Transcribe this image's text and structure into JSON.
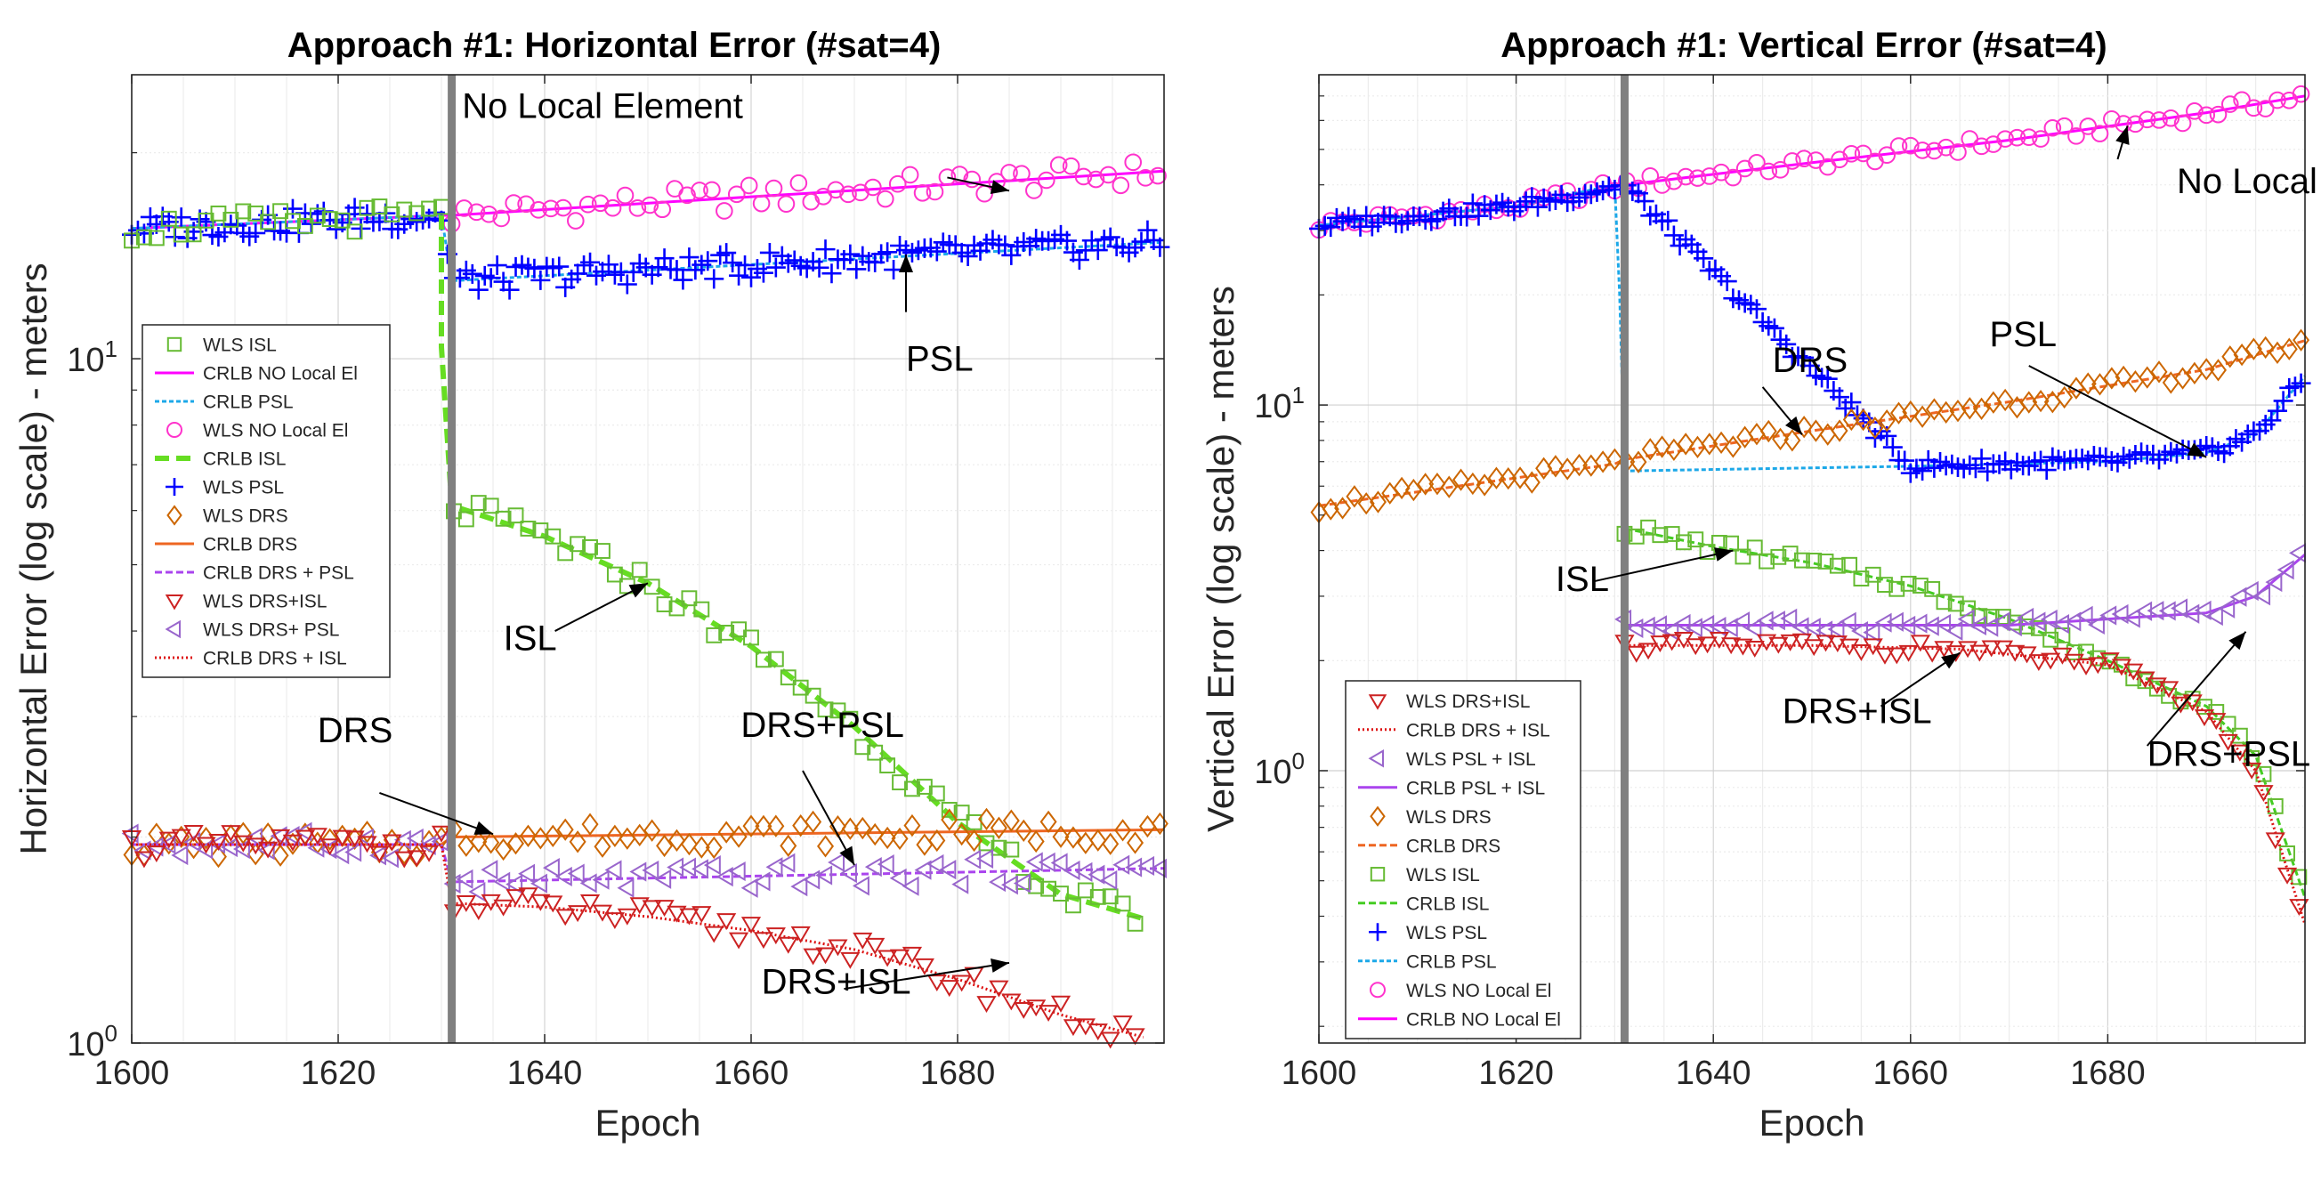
{
  "chart_data": [
    {
      "type": "line",
      "scale_y": "log",
      "title": "Approach #1:  Horizontal Error (#sat=4)",
      "xlabel": "Epoch",
      "ylabel": "Horizontal Error  (log scale) - meters",
      "xlim": [
        1600,
        1700
      ],
      "ylim": [
        1,
        26
      ],
      "xticks": [
        {
          "v": 1600,
          "label": "1600"
        },
        {
          "v": 1620,
          "label": "1620"
        },
        {
          "v": 1640,
          "label": "1640"
        },
        {
          "v": 1660,
          "label": "1660"
        },
        {
          "v": 1680,
          "label": "1680"
        }
      ],
      "yticks": [
        {
          "v": 1,
          "base": "10",
          "exp": "0"
        },
        {
          "v": 10,
          "base": "10",
          "exp": "1"
        }
      ],
      "event_epoch": 1631,
      "legend": {
        "position": "middle-left",
        "entries": [
          {
            "label": "WLS ISL",
            "series": "wls_isl"
          },
          {
            "label": "CRLB NO Local El",
            "series": "crlb_nolocal"
          },
          {
            "label": "CRLB PSL",
            "series": "crlb_psl"
          },
          {
            "label": "WLS NO Local El",
            "series": "wls_nolocal"
          },
          {
            "label": "CRLB ISL",
            "series": "crlb_isl"
          },
          {
            "label": "WLS PSL",
            "series": "wls_psl"
          },
          {
            "label": "WLS DRS",
            "series": "wls_drs"
          },
          {
            "label": "CRLB DRS",
            "series": "crlb_drs"
          },
          {
            "label": "CRLB DRS + PSL",
            "series": "crlb_drs_psl"
          },
          {
            "label": "WLS DRS+ISL",
            "series": "wls_drs_isl"
          },
          {
            "label": "WLS DRS+ PSL",
            "series": "wls_drs_psl"
          },
          {
            "label": "CRLB DRS + ISL",
            "series": "crlb_drs_isl"
          }
        ]
      },
      "series": [
        {
          "key": "crlb_nolocal",
          "name": "CRLB NO Local El",
          "style": "line",
          "color": "#ff00ff",
          "dash": "",
          "x": [
            1600,
            1630,
            1631,
            1700
          ],
          "y": [
            15.5,
            16.2,
            16.2,
            18.8
          ]
        },
        {
          "key": "wls_nolocal",
          "name": "WLS NO Local El",
          "style": "marker",
          "marker": "circle",
          "color": "#ff33cc",
          "x": [
            1631,
            1700
          ],
          "y": [
            16.2,
            18.8
          ]
        },
        {
          "key": "crlb_psl",
          "name": "CRLB PSL",
          "style": "line",
          "color": "#1ca8e8",
          "dash": "5,3",
          "x": [
            1600,
            1630,
            1631,
            1700
          ],
          "y": [
            15.5,
            16.2,
            13.0,
            14.8
          ]
        },
        {
          "key": "wls_psl",
          "name": "WLS PSL",
          "style": "marker",
          "marker": "plus",
          "color": "#0000ff",
          "x": [
            1600,
            1630,
            1631,
            1700
          ],
          "y": [
            15.5,
            16.2,
            13.0,
            14.8
          ]
        },
        {
          "key": "crlb_isl",
          "name": "CRLB ISL",
          "style": "line",
          "color": "#66dd22",
          "dash": "16,8",
          "x": [
            1630,
            1630,
            1631,
            1640,
            1650,
            1660,
            1670,
            1680,
            1690,
            1698
          ],
          "y": [
            16.2,
            10.4,
            6.1,
            5.5,
            4.7,
            3.8,
            2.9,
            2.1,
            1.65,
            1.52
          ]
        },
        {
          "key": "wls_isl",
          "name": "WLS ISL",
          "style": "marker",
          "marker": "square",
          "color": "#66bb33",
          "x": [
            1600,
            1630,
            1631,
            1640,
            1650,
            1660,
            1670,
            1680,
            1690,
            1698
          ],
          "y": [
            15.5,
            16.2,
            6.1,
            5.5,
            4.7,
            3.8,
            2.9,
            2.1,
            1.65,
            1.52
          ]
        },
        {
          "key": "crlb_drs",
          "name": "CRLB DRS",
          "style": "line",
          "color": "#ee6622",
          "dash": "",
          "x": [
            1600,
            1630,
            1631,
            1700
          ],
          "y": [
            1.95,
            1.95,
            2.0,
            2.05
          ]
        },
        {
          "key": "wls_drs",
          "name": "WLS DRS",
          "style": "marker",
          "marker": "diamond",
          "color": "#cc6600",
          "x": [
            1600,
            1630,
            1631,
            1700
          ],
          "y": [
            1.95,
            1.95,
            2.0,
            2.05
          ]
        },
        {
          "key": "crlb_drs_psl",
          "name": "CRLB DRS + PSL",
          "style": "line",
          "color": "#aa44ee",
          "dash": "8,4",
          "x": [
            1600,
            1630,
            1631,
            1700
          ],
          "y": [
            1.95,
            1.95,
            1.72,
            1.8
          ]
        },
        {
          "key": "wls_drs_psl",
          "name": "WLS DRS+ PSL",
          "style": "marker",
          "marker": "tri-left",
          "color": "#9966cc",
          "x": [
            1600,
            1630,
            1631,
            1700
          ],
          "y": [
            1.95,
            1.95,
            1.72,
            1.8
          ]
        },
        {
          "key": "crlb_drs_isl",
          "name": "CRLB DRS + ISL",
          "style": "line",
          "color": "#dd1111",
          "dash": "2,3",
          "x": [
            1600,
            1630,
            1631,
            1640,
            1650,
            1660,
            1670,
            1680,
            1690,
            1698
          ],
          "y": [
            1.95,
            1.95,
            1.6,
            1.58,
            1.53,
            1.46,
            1.37,
            1.24,
            1.1,
            1.02
          ]
        },
        {
          "key": "wls_drs_isl",
          "name": "WLS DRS+ISL",
          "style": "marker",
          "marker": "tri-down",
          "color": "#cc2222",
          "x": [
            1600,
            1630,
            1631,
            1640,
            1650,
            1660,
            1670,
            1680,
            1690,
            1698
          ],
          "y": [
            1.95,
            1.95,
            1.6,
            1.58,
            1.53,
            1.46,
            1.37,
            1.24,
            1.1,
            1.02
          ]
        }
      ],
      "annotations": [
        {
          "text": "No Local Element",
          "tx": 1632,
          "ty": 22.5,
          "ax": 1679,
          "ay": 18.4,
          "tip_x": 1685,
          "tip_y": 17.6
        },
        {
          "text": "PSL",
          "tx": 1675,
          "ty": 9.6,
          "ax": 1675,
          "ay": 11.7,
          "tip_x": 1675,
          "tip_y": 14.2
        },
        {
          "text": "ISL",
          "tx": 1636,
          "ty": 3.75,
          "ax": 1641,
          "ay": 4.0,
          "tip_x": 1650,
          "tip_y": 4.7
        },
        {
          "text": "DRS",
          "tx": 1618,
          "ty": 2.75,
          "ax": 1624,
          "ay": 2.32,
          "tip_x": 1635,
          "tip_y": 2.02
        },
        {
          "text": "DRS+PSL",
          "tx": 1659,
          "ty": 2.8,
          "ax": 1665,
          "ay": 2.5,
          "tip_x": 1670,
          "tip_y": 1.82
        },
        {
          "text": "DRS+ISL",
          "tx": 1661,
          "ty": 1.18,
          "ax": 1669,
          "ay": 1.2,
          "tip_x": 1685,
          "tip_y": 1.31
        }
      ]
    },
    {
      "type": "line",
      "scale_y": "log",
      "title": "Approach #1: Vertical Error (#sat=4)",
      "xlabel": "Epoch",
      "ylabel": "Vertical Error  (log scale) - meters",
      "xlim": [
        1600,
        1700
      ],
      "ylim": [
        0.18,
        80
      ],
      "xticks": [
        {
          "v": 1600,
          "label": "1600"
        },
        {
          "v": 1620,
          "label": "1620"
        },
        {
          "v": 1640,
          "label": "1640"
        },
        {
          "v": 1660,
          "label": "1660"
        },
        {
          "v": 1680,
          "label": "1680"
        }
      ],
      "yticks": [
        {
          "v": 1,
          "base": "10",
          "exp": "0"
        },
        {
          "v": 10,
          "base": "10",
          "exp": "1"
        }
      ],
      "event_epoch": 1631,
      "legend": {
        "position": "bottom-left",
        "entries": [
          {
            "label": "WLS DRS+ISL",
            "series": "wls_drs_isl"
          },
          {
            "label": "CRLB DRS + ISL",
            "series": "crlb_drs_isl"
          },
          {
            "label": "WLS PSL + ISL",
            "series": "wls_psl_isl"
          },
          {
            "label": "CRLB PSL + ISL",
            "series": "crlb_psl_isl"
          },
          {
            "label": "WLS DRS",
            "series": "wls_drs"
          },
          {
            "label": "CRLB DRS",
            "series": "crlb_drs"
          },
          {
            "label": "WLS ISL",
            "series": "wls_isl"
          },
          {
            "label": "CRLB ISL",
            "series": "crlb_isl"
          },
          {
            "label": "WLS PSL",
            "series": "wls_psl"
          },
          {
            "label": "CRLB PSL",
            "series": "crlb_psl"
          },
          {
            "label": "WLS NO Local El",
            "series": "wls_nolocal"
          },
          {
            "label": "CRLB NO Local El",
            "series": "crlb_nolocal"
          }
        ]
      },
      "series": [
        {
          "key": "crlb_nolocal",
          "name": "CRLB NO Local El",
          "style": "line",
          "color": "#ff00ff",
          "dash": "",
          "x": [
            1600,
            1620,
            1631,
            1650,
            1670,
            1690,
            1700
          ],
          "y": [
            31,
            35,
            40,
            46,
            53,
            63,
            70
          ]
        },
        {
          "key": "wls_nolocal",
          "name": "WLS NO Local El",
          "style": "marker",
          "marker": "circle",
          "color": "#ff33cc",
          "x": [
            1600,
            1620,
            1631,
            1650,
            1670,
            1690,
            1700
          ],
          "y": [
            31,
            35,
            40,
            46,
            53,
            63,
            70
          ]
        },
        {
          "key": "crlb_psl",
          "name": "CRLB PSL",
          "style": "line",
          "color": "#1ca8e8",
          "dash": "5,3",
          "x": [
            1600,
            1620,
            1630,
            1630.5,
            1631,
            1660,
            1680,
            1690,
            1695,
            1700
          ],
          "y": [
            31,
            35,
            40,
            20,
            6.6,
            6.8,
            7.0,
            7.4,
            8.3,
            12
          ]
        },
        {
          "key": "wls_psl",
          "name": "WLS PSL",
          "style": "marker",
          "marker": "plus",
          "color": "#0000ff",
          "x": [
            1600,
            1620,
            1631,
            1660,
            1680,
            1690,
            1695,
            1700
          ],
          "y": [
            31,
            35,
            40,
            6.8,
            7.0,
            7.4,
            8.3,
            12
          ]
        },
        {
          "key": "crlb_drs",
          "name": "CRLB DRS",
          "style": "line",
          "color": "#ee6622",
          "dash": "8,4",
          "x": [
            1600,
            1630,
            1631,
            1650,
            1670,
            1690,
            1700
          ],
          "y": [
            5.3,
            6.9,
            7.1,
            8.5,
            10.2,
            12.5,
            15
          ]
        },
        {
          "key": "wls_drs",
          "name": "WLS DRS",
          "style": "marker",
          "marker": "diamond",
          "color": "#cc6600",
          "x": [
            1600,
            1630,
            1631,
            1650,
            1670,
            1690,
            1700
          ],
          "y": [
            5.3,
            6.9,
            7.1,
            8.5,
            10.2,
            12.5,
            15
          ]
        },
        {
          "key": "crlb_isl",
          "name": "CRLB ISL",
          "style": "line",
          "color": "#44cc22",
          "dash": "8,4",
          "x": [
            1631,
            1640,
            1650,
            1660,
            1670,
            1680,
            1690,
            1695,
            1700
          ],
          "y": [
            4.6,
            4.1,
            3.7,
            3.2,
            2.6,
            2.0,
            1.5,
            1.1,
            0.45
          ]
        },
        {
          "key": "wls_isl",
          "name": "WLS ISL",
          "style": "marker",
          "marker": "square",
          "color": "#66bb33",
          "x": [
            1631,
            1640,
            1650,
            1660,
            1670,
            1680,
            1690,
            1695,
            1700
          ],
          "y": [
            4.6,
            4.1,
            3.7,
            3.2,
            2.6,
            2.0,
            1.5,
            1.1,
            0.45
          ]
        },
        {
          "key": "crlb_psl_isl",
          "name": "CRLB PSL + ISL",
          "style": "line",
          "color": "#aa44ee",
          "dash": "",
          "x": [
            1631,
            1650,
            1670,
            1690,
            1695,
            1700
          ],
          "y": [
            2.5,
            2.5,
            2.5,
            2.7,
            3.0,
            3.9
          ]
        },
        {
          "key": "wls_psl_isl",
          "name": "WLS PSL + ISL",
          "style": "marker",
          "marker": "tri-left",
          "color": "#9966cc",
          "x": [
            1631,
            1650,
            1670,
            1690,
            1695,
            1700
          ],
          "y": [
            2.5,
            2.5,
            2.5,
            2.7,
            3.0,
            3.9
          ]
        },
        {
          "key": "crlb_drs_isl",
          "name": "CRLB DRS + ISL",
          "style": "line",
          "color": "#dd1111",
          "dash": "2,3",
          "x": [
            1631,
            1650,
            1665,
            1680,
            1690,
            1695,
            1700
          ],
          "y": [
            2.2,
            2.2,
            2.15,
            1.95,
            1.45,
            1.0,
            0.38
          ]
        },
        {
          "key": "wls_drs_isl",
          "name": "WLS DRS+ISL",
          "style": "marker",
          "marker": "tri-down",
          "color": "#cc2222",
          "x": [
            1631,
            1650,
            1665,
            1680,
            1690,
            1695,
            1700
          ],
          "y": [
            2.2,
            2.2,
            2.15,
            1.95,
            1.45,
            1.0,
            0.38
          ]
        }
      ],
      "annotations": [
        {
          "text": "No Local Element",
          "tx": 1687,
          "ty": 38,
          "ax": 1681,
          "ay": 47,
          "tip_x": 1682,
          "tip_y": 58
        },
        {
          "text": "PSL",
          "tx": 1668,
          "ty": 14.5,
          "ax": 1672,
          "ay": 12.8,
          "tip_x": 1690,
          "tip_y": 7.2
        },
        {
          "text": "DRS",
          "tx": 1646,
          "ty": 12.3,
          "ax": 1645,
          "ay": 11.2,
          "tip_x": 1649,
          "tip_y": 8.3
        },
        {
          "text": "ISL",
          "tx": 1624,
          "ty": 3.1,
          "ax": 1628,
          "ay": 3.3,
          "tip_x": 1642,
          "tip_y": 4.0
        },
        {
          "text": "DRS+ISL",
          "tx": 1647,
          "ty": 1.35,
          "ax": 1657,
          "ay": 1.5,
          "tip_x": 1665,
          "tip_y": 2.1
        },
        {
          "text": "DRS+PSL",
          "tx": 1684,
          "ty": 1.03,
          "ax": 1684,
          "ay": 1.17,
          "tip_x": 1694,
          "tip_y": 2.4
        }
      ]
    }
  ]
}
